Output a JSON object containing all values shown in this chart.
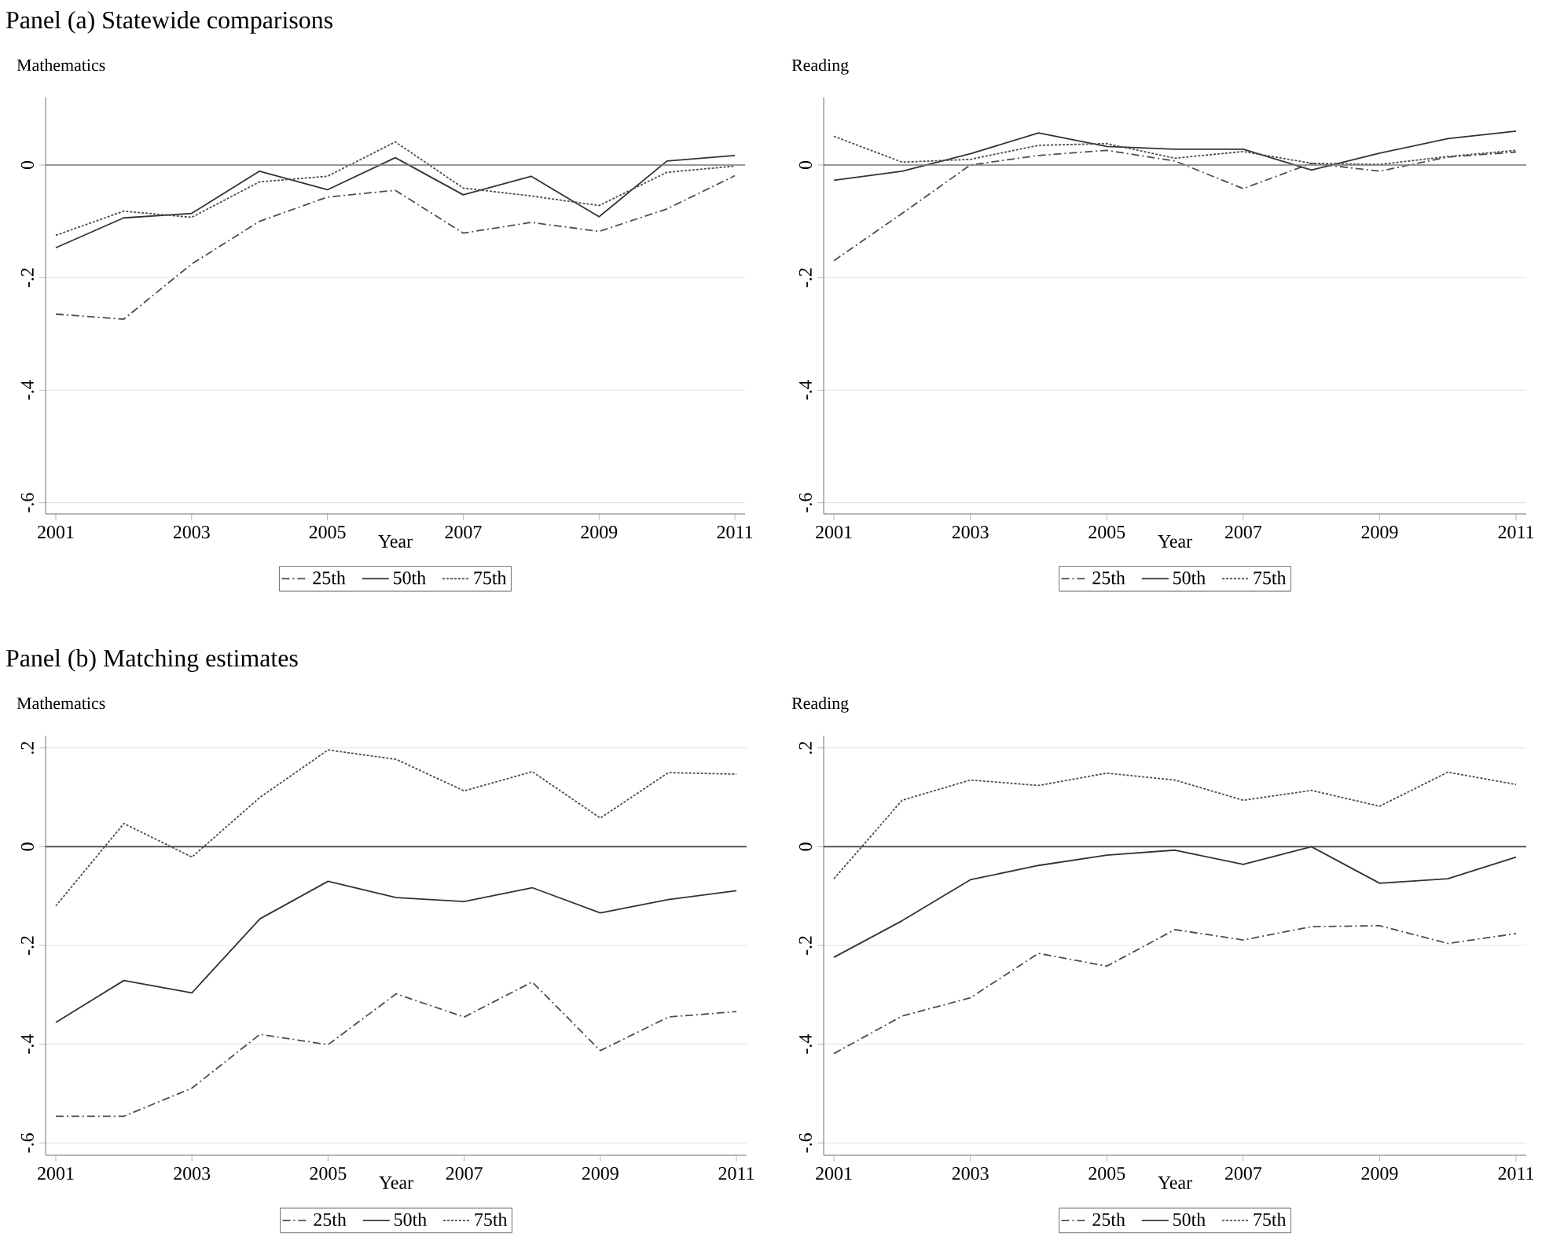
{
  "chart_data": [
    {
      "type": "line",
      "title": "Panel (a)  Statewide comparisons",
      "subtitle": "Mathematics",
      "xlabel": "Year",
      "x": [
        2001,
        2002,
        2003,
        2004,
        2005,
        2006,
        2007,
        2008,
        2009,
        2010,
        2011
      ],
      "series": [
        {
          "name": "25th",
          "color": "#4d4d4d",
          "line_style": "dashed",
          "values": [
            -0.265,
            -0.274,
            -0.176,
            -0.1,
            -0.057,
            -0.045,
            -0.121,
            -0.102,
            -0.118,
            -0.078,
            -0.019
          ]
        },
        {
          "name": "50th",
          "color": "#333333",
          "line_style": "solid",
          "values": [
            -0.147,
            -0.094,
            -0.086,
            -0.011,
            -0.044,
            0.013,
            -0.053,
            -0.02,
            -0.092,
            0.007,
            0.017
          ]
        },
        {
          "name": "75th",
          "color": "#4d4d4d",
          "line_style": "dotted",
          "values": [
            -0.125,
            -0.082,
            -0.093,
            -0.03,
            -0.02,
            0.041,
            -0.041,
            -0.055,
            -0.072,
            -0.013,
            -0.002
          ]
        }
      ],
      "xlim": [
        2000.85,
        2011.15
      ],
      "xticks": [
        2001,
        2003,
        2005,
        2007,
        2009,
        2011
      ],
      "ylim": [
        -0.62,
        0.12
      ],
      "yticks": [
        {
          "value": -0.6,
          "label": "-.6"
        },
        {
          "value": -0.4,
          "label": "-.4"
        },
        {
          "value": -0.2,
          "label": "-.2"
        },
        0
      ],
      "grid": "y",
      "legend": "bottom",
      "ref_lines": [
        {
          "axis": "y",
          "value": 0,
          "color": "#7a7a7a"
        }
      ]
    },
    {
      "type": "line",
      "subtitle": "Reading",
      "xlabel": "Year",
      "x": [
        2001,
        2002,
        2003,
        2004,
        2005,
        2006,
        2007,
        2008,
        2009,
        2010,
        2011
      ],
      "series": [
        {
          "name": "25th",
          "color": "#4d4d4d",
          "line_style": "dashed",
          "values": [
            -0.17,
            -0.086,
            0,
            0.017,
            0.026,
            0.007,
            -0.042,
            0.003,
            -0.011,
            0.014,
            0.023
          ]
        },
        {
          "name": "50th",
          "color": "#333333",
          "line_style": "solid",
          "values": [
            -0.027,
            -0.011,
            0.02,
            0.057,
            0.033,
            0.028,
            0.028,
            -0.009,
            0.021,
            0.047,
            0.06
          ]
        },
        {
          "name": "75th",
          "color": "#4d4d4d",
          "line_style": "dotted",
          "values": [
            0.051,
            0.005,
            0.01,
            0.035,
            0.038,
            0.012,
            0.024,
            0.003,
            0.001,
            0.015,
            0.026
          ]
        }
      ],
      "xlim": [
        2000.85,
        2011.15
      ],
      "xticks": [
        2001,
        2003,
        2005,
        2007,
        2009,
        2011
      ],
      "ylim": [
        -0.62,
        0.12
      ],
      "yticks": [
        {
          "value": -0.6,
          "label": "-.6"
        },
        {
          "value": -0.4,
          "label": "-.4"
        },
        {
          "value": -0.2,
          "label": "-.2"
        },
        0
      ],
      "grid": "y",
      "legend": "bottom",
      "ref_lines": [
        {
          "axis": "y",
          "value": 0,
          "color": "#7a7a7a"
        }
      ]
    },
    {
      "type": "line",
      "title": "Panel (b)  Matching estimates",
      "subtitle": "Mathematics",
      "xlabel": "Year",
      "x": [
        2001,
        2002,
        2003,
        2004,
        2005,
        2006,
        2007,
        2008,
        2009,
        2010,
        2011
      ],
      "series": [
        {
          "name": "25th",
          "color": "#4d4d4d",
          "line_style": "dashed",
          "values": [
            -0.546,
            -0.546,
            -0.489,
            -0.38,
            -0.401,
            -0.298,
            -0.345,
            -0.274,
            -0.413,
            -0.345,
            -0.334
          ]
        },
        {
          "name": "50th",
          "color": "#333333",
          "line_style": "solid",
          "values": [
            -0.356,
            -0.271,
            -0.296,
            -0.146,
            -0.07,
            -0.103,
            -0.111,
            -0.083,
            -0.134,
            -0.107,
            -0.089
          ]
        },
        {
          "name": "75th",
          "color": "#4d4d4d",
          "line_style": "dotted",
          "values": [
            -0.12,
            0.047,
            -0.021,
            0.1,
            0.196,
            0.177,
            0.113,
            0.152,
            0.058,
            0.15,
            0.147
          ]
        }
      ],
      "xlim": [
        2000.85,
        2011.15
      ],
      "xticks": [
        2001,
        2003,
        2005,
        2007,
        2009,
        2011
      ],
      "ylim": [
        -0.625,
        0.225
      ],
      "yticks": [
        {
          "value": -0.6,
          "label": "-.6"
        },
        {
          "value": -0.4,
          "label": "-.4"
        },
        {
          "value": -0.2,
          "label": "-.2"
        },
        0,
        {
          "value": 0.2,
          "label": ".2"
        }
      ],
      "grid": "y",
      "legend": "bottom",
      "ref_lines": [
        {
          "axis": "y",
          "value": 0,
          "color": "#444444"
        }
      ]
    },
    {
      "type": "line",
      "subtitle": "Reading",
      "xlabel": "Year",
      "x": [
        2001,
        2002,
        2003,
        2004,
        2005,
        2006,
        2007,
        2008,
        2009,
        2010,
        2011
      ],
      "series": [
        {
          "name": "25th",
          "color": "#4d4d4d",
          "line_style": "dashed",
          "values": [
            -0.419,
            -0.343,
            -0.306,
            -0.216,
            -0.242,
            -0.168,
            -0.189,
            -0.162,
            -0.16,
            -0.196,
            -0.176
          ]
        },
        {
          "name": "50th",
          "color": "#333333",
          "line_style": "solid",
          "values": [
            -0.224,
            -0.15,
            -0.067,
            -0.038,
            -0.017,
            -0.007,
            -0.036,
            0,
            -0.074,
            -0.065,
            -0.021
          ]
        },
        {
          "name": "75th",
          "color": "#4d4d4d",
          "line_style": "dotted",
          "values": [
            -0.065,
            0.094,
            0.135,
            0.124,
            0.149,
            0.135,
            0.094,
            0.114,
            0.082,
            0.151,
            0.126
          ]
        }
      ],
      "xlim": [
        2000.85,
        2011.15
      ],
      "xticks": [
        2001,
        2003,
        2005,
        2007,
        2009,
        2011
      ],
      "ylim": [
        -0.625,
        0.225
      ],
      "yticks": [
        {
          "value": -0.6,
          "label": "-.6"
        },
        {
          "value": -0.4,
          "label": "-.4"
        },
        {
          "value": -0.2,
          "label": "-.2"
        },
        0,
        {
          "value": 0.2,
          "label": ".2"
        }
      ],
      "grid": "y",
      "legend": "bottom",
      "ref_lines": [
        {
          "axis": "y",
          "value": 0,
          "color": "#444444"
        }
      ]
    }
  ]
}
